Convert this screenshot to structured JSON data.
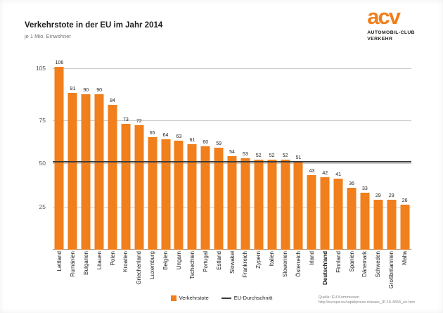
{
  "logo": {
    "acv": "acv",
    "line1": "AUTOMOBIL-CLUB",
    "line2": "VERKEHR"
  },
  "chart_data": {
    "type": "bar",
    "title": "Verkehrstote in der EU im Jahr 2014",
    "subtitle": "je 1 Mio. Einwohner",
    "categories": [
      "Lettland",
      "Rumänien",
      "Bulgarien",
      "Litauen",
      "Polen",
      "Kroatien",
      "Griechenland",
      "Luxemburg",
      "Belgien",
      "Ungarn",
      "Tschechien",
      "Portugal",
      "Estland",
      "Slowakei",
      "Frankreich",
      "Zypern",
      "Italien",
      "Slowenien",
      "Österreich",
      "Irland",
      "Deutschland",
      "Finnland",
      "Spanien",
      "Dänemark",
      "Schweden",
      "Großbritannien",
      "Malta"
    ],
    "values": [
      106,
      91,
      90,
      90,
      84,
      73,
      72,
      65,
      64,
      63,
      61,
      60,
      59,
      54,
      53,
      52,
      52,
      52,
      51,
      43,
      42,
      41,
      36,
      33,
      29,
      29,
      26
    ],
    "highlight_category": "Deutschland",
    "yticks": [
      25,
      50,
      75,
      105
    ],
    "ylim": [
      0,
      110
    ],
    "grid": true,
    "average_line": {
      "value": 51,
      "label": "EU-Durchschnitt"
    },
    "bar_color": "#F07F1C",
    "avg_line_color": "#3c3c3b",
    "legend": [
      {
        "type": "square",
        "label": "Verkehrstote",
        "color": "#F07F1C"
      },
      {
        "type": "line",
        "label": "EU-Durchschnitt",
        "color": "#3c3c3b"
      }
    ],
    "legend_position": "bottom-center"
  },
  "footer": {
    "source_line1": "Quelle: EU-Kommission",
    "source_line2": "http://europa.eu/rapid/press-release_IP-15-4656_en.htm"
  }
}
